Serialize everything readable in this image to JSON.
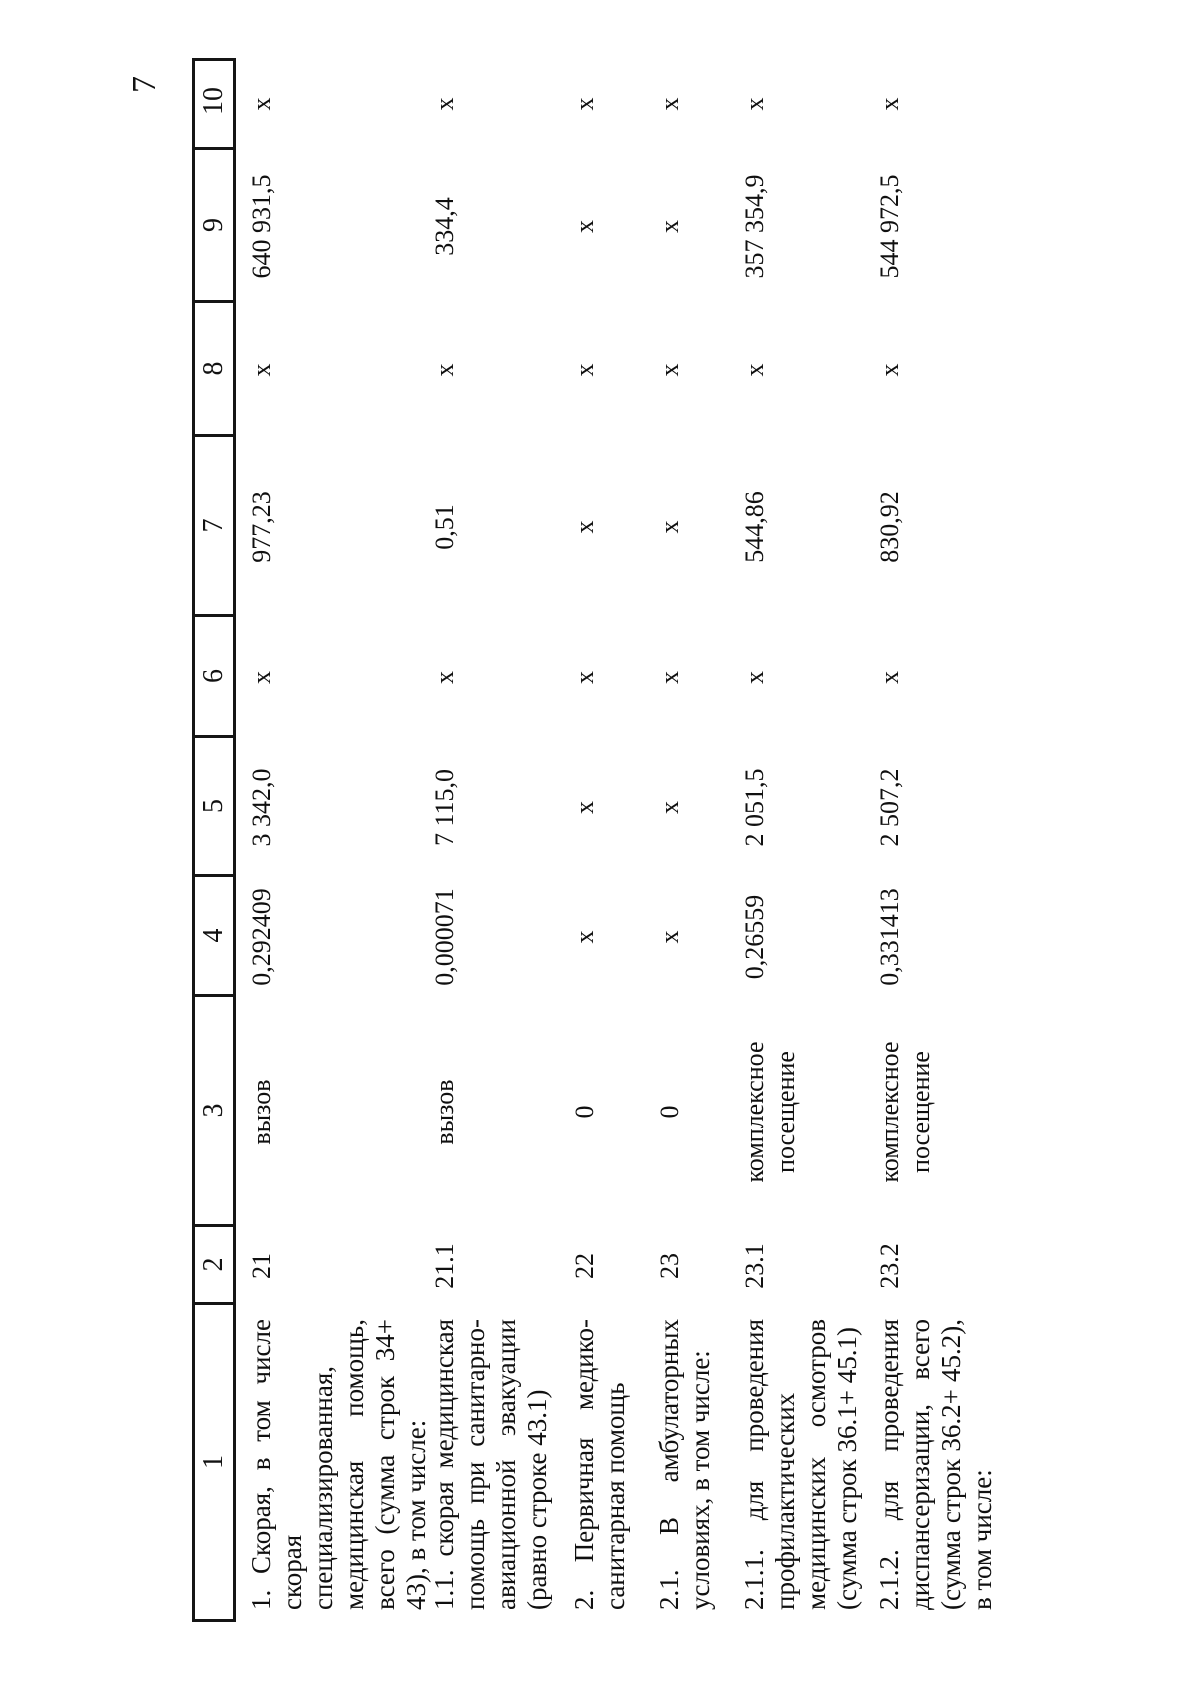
{
  "page": {
    "number": "7"
  },
  "table": {
    "columns": [
      "1",
      "2",
      "3",
      "4",
      "5",
      "6",
      "7",
      "8",
      "9",
      "10"
    ],
    "rows": [
      {
        "cells": [
          "1. Скорая, в том числе скорая специализированная, медицинская помощь, всего (сумма строк 34+ 43), в том числе:",
          "21",
          "вызов",
          "0,292409",
          "3 342,0",
          "x",
          "977,23",
          "x",
          "640 931,5",
          "x"
        ]
      },
      {
        "cells": [
          "1.1. скорая медицинская помощь при санитарно-авиационной эвакуации (равно строке 43.1)",
          "21.1",
          "вызов",
          "0,000071",
          "7 115,0",
          "x",
          "0,51",
          "x",
          "334,4",
          "x"
        ]
      },
      {
        "cells": [
          "2. Первичная медико-санитарная помощь",
          "22",
          "0",
          "x",
          "x",
          "x",
          "x",
          "x",
          "x",
          "x"
        ]
      },
      {
        "cells": [
          "2.1. В амбулаторных условиях, в том числе:",
          "23",
          "0",
          "x",
          "x",
          "x",
          "x",
          "x",
          "x",
          "x"
        ]
      },
      {
        "cells": [
          "2.1.1. для проведения профилактических медицинских осмотров (сумма строк 36.1+ 45.1)",
          "23.1",
          "комплексное посещение",
          "0,26559",
          "2 051,5",
          "x",
          "544,86",
          "x",
          "357 354,9",
          "x"
        ]
      },
      {
        "cells": [
          "2.1.2. для проведения диспансеризации, всего (сумма строк 36.2+ 45.2), в том числе:",
          "23.2",
          "комплексное посещение",
          "0,331413",
          "2 507,2",
          "x",
          "830,92",
          "x",
          "544 972,5",
          "x"
        ]
      }
    ]
  }
}
